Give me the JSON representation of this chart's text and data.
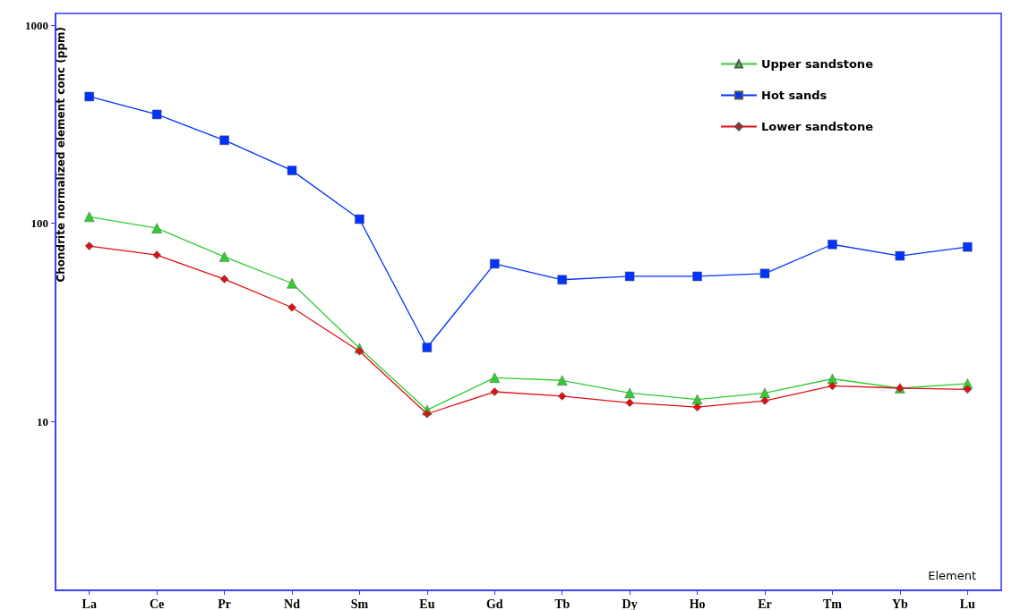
{
  "chart_data": {
    "type": "line",
    "xlabel": "Element",
    "ylabel": "Chondrite normalized element conc (ppm)",
    "categories": [
      "La",
      "Ce",
      "Pr",
      "Nd",
      "Sm",
      "Eu",
      "Gd",
      "Tb",
      "Dy",
      "Ho",
      "Er",
      "Tm",
      "Yb",
      "Lu"
    ],
    "series": [
      {
        "name": "Upper sandstone",
        "color": "#33cc33",
        "marker": "triangle",
        "values": [
          108,
          94.5,
          67.8,
          49.8,
          23.4,
          11.4,
          16.6,
          16.1,
          13.9,
          12.9,
          13.9,
          16.4,
          14.7,
          15.5
        ]
      },
      {
        "name": "Hot sands",
        "color": "#0033ff",
        "marker": "square",
        "values": [
          437,
          355,
          263,
          185,
          105,
          23.6,
          62.5,
          51.9,
          54,
          54,
          55.8,
          78.3,
          68.5,
          76
        ]
      },
      {
        "name": "Lower sandstone",
        "color": "#dd1111",
        "marker": "diamond",
        "values": [
          76.8,
          69.2,
          52.3,
          37.6,
          22.6,
          10.9,
          14.1,
          13.4,
          12.4,
          11.8,
          12.7,
          15.1,
          14.7,
          14.5
        ]
      }
    ],
    "log": "y",
    "ylim": [
      1.4,
      1150
    ],
    "yticks": [
      10,
      100,
      1000
    ],
    "grid": false,
    "legend": "top right",
    "line_style": "solid"
  }
}
